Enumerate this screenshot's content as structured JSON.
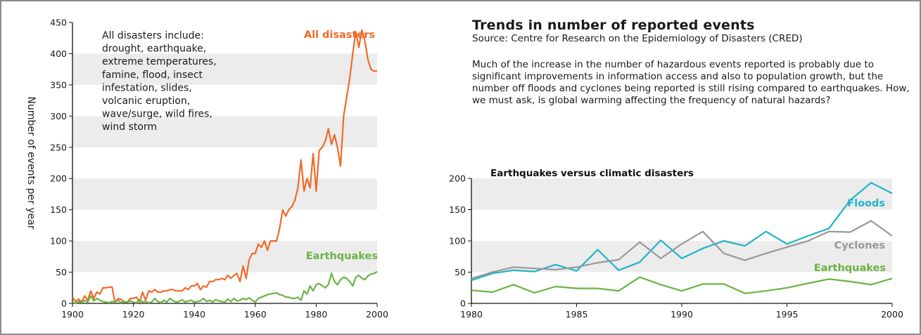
{
  "header": {
    "title": "Trends in number of reported events",
    "source": "Source: Centre for Research on the Epidemiology of Disasters (CRED)",
    "body": "Much of the increase in the number of hazardous events reported is probably due to significant improvements in information access and also to population growth, but the number off floods and cyclones being reported is still rising compared to earthquakes. How, we must ask, is global warming affecting the frequency of natural hazards?"
  },
  "chart_data": [
    {
      "type": "line",
      "title": "",
      "ylabel": "Number of events per year",
      "xlabel": "",
      "xlim": [
        1900,
        2000
      ],
      "ylim": [
        0,
        450
      ],
      "x_ticks": [
        1900,
        1920,
        1940,
        1960,
        1980,
        2000
      ],
      "y_ticks": [
        0,
        50,
        100,
        150,
        200,
        250,
        300,
        350,
        400,
        450
      ],
      "grid": "alternating horizontal bands",
      "note_lines": [
        "All disasters include:",
        "drought, earthquake,",
        "extreme temperatures,",
        "famine, flood, insect",
        "infestation, slides,",
        "volcanic eruption,",
        "wave/surge, wild fires,",
        "wind storm"
      ],
      "series": [
        {
          "name": "All disasters",
          "color": "#ef6b2a",
          "label_position": "top-right",
          "x": [
            1900,
            1901,
            1902,
            1903,
            1904,
            1905,
            1906,
            1907,
            1908,
            1909,
            1910,
            1911,
            1912,
            1913,
            1914,
            1915,
            1916,
            1917,
            1918,
            1919,
            1920,
            1921,
            1922,
            1923,
            1924,
            1925,
            1926,
            1927,
            1928,
            1929,
            1930,
            1931,
            1932,
            1933,
            1934,
            1935,
            1936,
            1937,
            1938,
            1939,
            1940,
            1941,
            1942,
            1943,
            1944,
            1945,
            1946,
            1947,
            1948,
            1949,
            1950,
            1951,
            1952,
            1953,
            1954,
            1955,
            1956,
            1957,
            1958,
            1959,
            1960,
            1961,
            1962,
            1963,
            1964,
            1965,
            1966,
            1967,
            1968,
            1969,
            1970,
            1971,
            1972,
            1973,
            1974,
            1975,
            1976,
            1977,
            1978,
            1979,
            1980,
            1981,
            1982,
            1983,
            1984,
            1985,
            1986,
            1987,
            1988,
            1989,
            1990,
            1991,
            1992,
            1993,
            1994,
            1995,
            1996,
            1997,
            1998,
            1999,
            2000
          ],
          "values": [
            10,
            3,
            7,
            2,
            12,
            5,
            20,
            8,
            18,
            15,
            25,
            25,
            26,
            26,
            1,
            8,
            6,
            2,
            2,
            8,
            8,
            10,
            2,
            18,
            5,
            20,
            18,
            22,
            18,
            18,
            20,
            20,
            22,
            22,
            20,
            20,
            20,
            25,
            22,
            28,
            28,
            32,
            22,
            28,
            26,
            35,
            35,
            38,
            38,
            40,
            38,
            45,
            40,
            45,
            48,
            35,
            60,
            40,
            70,
            80,
            80,
            95,
            90,
            100,
            85,
            100,
            100,
            100,
            120,
            150,
            140,
            150,
            155,
            165,
            185,
            230,
            180,
            200,
            185,
            240,
            180,
            245,
            250,
            260,
            280,
            255,
            270,
            250,
            220,
            300,
            330,
            360,
            400,
            435,
            410,
            438,
            420,
            390,
            375,
            372,
            372
          ]
        },
        {
          "name": "Earthquakes",
          "color": "#6ab344",
          "label_position": "right",
          "x": [
            1900,
            1901,
            1902,
            1903,
            1904,
            1905,
            1906,
            1907,
            1908,
            1909,
            1910,
            1911,
            1912,
            1913,
            1914,
            1915,
            1916,
            1917,
            1918,
            1919,
            1920,
            1921,
            1922,
            1923,
            1924,
            1925,
            1926,
            1927,
            1928,
            1929,
            1930,
            1931,
            1932,
            1933,
            1934,
            1935,
            1936,
            1937,
            1938,
            1939,
            1940,
            1941,
            1942,
            1943,
            1944,
            1945,
            1946,
            1947,
            1948,
            1949,
            1950,
            1951,
            1952,
            1953,
            1954,
            1955,
            1956,
            1957,
            1958,
            1959,
            1960,
            1961,
            1962,
            1963,
            1964,
            1965,
            1966,
            1967,
            1968,
            1969,
            1970,
            1971,
            1972,
            1973,
            1974,
            1975,
            1976,
            1977,
            1978,
            1979,
            1980,
            1981,
            1982,
            1983,
            1984,
            1985,
            1986,
            1987,
            1988,
            1989,
            1990,
            1991,
            1992,
            1993,
            1994,
            1995,
            1996,
            1997,
            1998,
            1999,
            2000
          ],
          "values": [
            2,
            0,
            3,
            1,
            5,
            2,
            12,
            4,
            8,
            5,
            3,
            2,
            1,
            3,
            2,
            5,
            1,
            3,
            2,
            4,
            2,
            1,
            6,
            2,
            3,
            1,
            2,
            8,
            3,
            1,
            5,
            2,
            8,
            4,
            2,
            3,
            6,
            2,
            4,
            5,
            2,
            3,
            4,
            8,
            3,
            5,
            2,
            6,
            4,
            3,
            2,
            7,
            3,
            8,
            4,
            5,
            8,
            6,
            9,
            5,
            2,
            8,
            10,
            12,
            14,
            15,
            16,
            17,
            14,
            13,
            10,
            10,
            8,
            8,
            10,
            5,
            20,
            15,
            28,
            20,
            30,
            32,
            28,
            25,
            30,
            48,
            35,
            30,
            38,
            42,
            40,
            35,
            28,
            42,
            45,
            40,
            38,
            44,
            47,
            48,
            51
          ]
        }
      ]
    },
    {
      "type": "line",
      "title": "Earthquakes versus climatic disasters",
      "xlabel": "",
      "ylabel": "",
      "xlim": [
        1980,
        2000
      ],
      "ylim": [
        0,
        200
      ],
      "x_ticks": [
        1980,
        1985,
        1990,
        1995,
        2000
      ],
      "y_ticks": [
        0,
        50,
        100,
        150,
        200
      ],
      "grid": "alternating horizontal bands",
      "series": [
        {
          "name": "Floods",
          "color": "#1fb3c9",
          "label_position": "top-right",
          "x": [
            1980,
            1981,
            1982,
            1983,
            1984,
            1985,
            1986,
            1987,
            1988,
            1989,
            1990,
            1991,
            1992,
            1993,
            1994,
            1995,
            1996,
            1997,
            1998,
            1999,
            2000
          ],
          "values": [
            37,
            48,
            53,
            51,
            62,
            52,
            86,
            53,
            66,
            101,
            72,
            88,
            100,
            92,
            115,
            95,
            108,
            120,
            165,
            193,
            176
          ]
        },
        {
          "name": "Cyclones",
          "color": "#999999",
          "label_position": "right",
          "x": [
            1980,
            1981,
            1982,
            1983,
            1984,
            1985,
            1986,
            1987,
            1988,
            1989,
            1990,
            1991,
            1992,
            1993,
            1994,
            1995,
            1996,
            1997,
            1998,
            1999,
            2000
          ],
          "values": [
            40,
            50,
            58,
            56,
            54,
            58,
            65,
            70,
            98,
            72,
            95,
            115,
            80,
            69,
            80,
            90,
            100,
            115,
            114,
            132,
            108
          ]
        },
        {
          "name": "Earthquakes",
          "color": "#6ab344",
          "label_position": "right",
          "x": [
            1980,
            1981,
            1982,
            1983,
            1984,
            1985,
            1986,
            1987,
            1988,
            1989,
            1990,
            1991,
            1992,
            1993,
            1994,
            1995,
            1996,
            1997,
            1998,
            1999,
            2000
          ],
          "values": [
            21,
            18,
            30,
            17,
            27,
            24,
            24,
            20,
            42,
            30,
            20,
            31,
            31,
            16,
            20,
            25,
            32,
            39,
            35,
            30,
            40
          ]
        }
      ]
    }
  ]
}
